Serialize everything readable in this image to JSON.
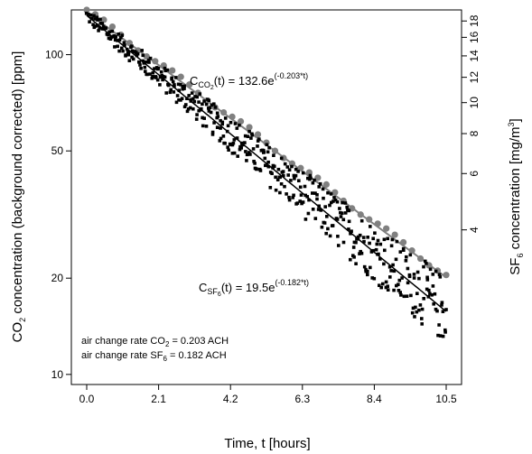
{
  "chart_data": {
    "type": "scatter",
    "x_axis": {
      "label": "Time, t [hours]",
      "range": [
        0,
        10.5
      ],
      "ticks": [
        0.0,
        2.1,
        4.2,
        6.3,
        8.4,
        10.5
      ],
      "tick_labels": [
        "0.0",
        "2.1",
        "4.2",
        "6.3",
        "8.4",
        "10.5"
      ]
    },
    "y_left_axis": {
      "label_main": "CO",
      "label_sub": "2",
      "label_rest": " concentration (background corrected) [ppm]",
      "scale": "log",
      "range": [
        9.3,
        138
      ],
      "ticks": [
        10,
        20,
        50,
        100
      ],
      "tick_labels": [
        "10",
        "20",
        "50",
        "100"
      ]
    },
    "y_right_axis": {
      "label_main": "SF",
      "label_sub": "6",
      "label_rest": " concentration [mg/m",
      "label_sup": "3",
      "label_end": "]",
      "scale": "log",
      "ticks": [
        4,
        6,
        8,
        10,
        12,
        14,
        16,
        18
      ],
      "tick_labels": [
        "4",
        "6",
        "8",
        "10",
        "12",
        "14",
        "16",
        "18"
      ]
    },
    "series": [
      {
        "marker": "square",
        "color": "#000000",
        "model": {
          "a": 132.6,
          "k": 0.203
        },
        "dense_points": true
      },
      {
        "marker": "circle",
        "color": "#808080",
        "model": {
          "a": 19.5,
          "k": 0.182
        }
      }
    ],
    "annotations": {
      "co2_eq": {
        "c": "C",
        "sub": "CO",
        "sub2": "2",
        "tail": "(t) = 132.6e",
        "sup": "(-0.203*t)"
      },
      "sf6_eq": {
        "c": "C",
        "sub": "SF",
        "sub2": "6",
        "tail": "(t) = 19.5e",
        "sup": "(-0.182*t)"
      },
      "note_line1": {
        "pre": "air change rate CO",
        "sub": "2",
        "post": " = 0.203 ACH"
      },
      "note_line2": {
        "pre": "air change rate SF",
        "sub": "6",
        "post": " = 0.182 ACH"
      }
    },
    "colors": {
      "co2": "#000000",
      "sf6": "#808080",
      "frame": "#000000"
    },
    "grid": false,
    "legend": "none"
  }
}
